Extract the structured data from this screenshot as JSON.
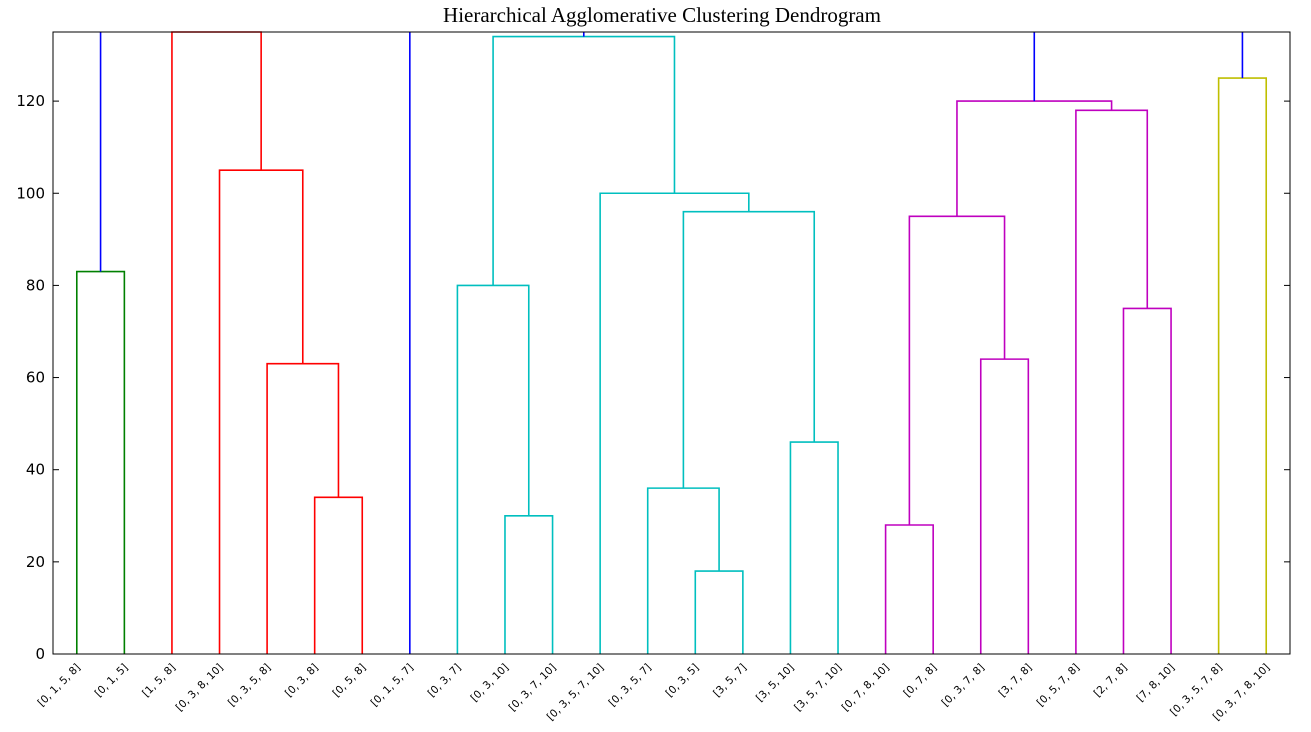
{
  "chart_data": {
    "type": "dendrogram",
    "title": "Hierarchical Agglomerative Clustering Dendrogram",
    "xlabel": "",
    "ylabel": "",
    "ylim": [
      0,
      135
    ],
    "yticks": [
      0,
      20,
      40,
      60,
      80,
      100,
      120
    ],
    "grid": false,
    "leaves": [
      "[0, 1, 5, 8]",
      "[0, 1, 5]",
      "[1, 5, 8]",
      "[0, 3, 8, 10]",
      "[0, 3, 5, 8]",
      "[0, 3, 8]",
      "[0, 5, 8]",
      "[0, 1, 5, 7]",
      "[0, 3, 7]",
      "[0, 3, 10]",
      "[0, 3, 7, 10]",
      "[0, 3, 5, 7, 10]",
      "[0, 3, 5, 7]",
      "[0, 3, 5]",
      "[3, 5, 7]",
      "[3, 5, 10]",
      "[3, 5, 7, 10]",
      "[0, 7, 8, 10]",
      "[0, 7, 8]",
      "[0, 3, 7, 8]",
      "[3, 7, 8]",
      "[0, 5, 7, 8]",
      "[2, 7, 8]",
      "[7, 8, 10]",
      "[0, 3, 5, 7, 8]",
      "[0, 3, 7, 8, 10]"
    ],
    "merges": [
      {
        "left": 0,
        "right": 1,
        "height": 83,
        "color": "#008000"
      },
      {
        "left": 5,
        "right": 6,
        "height": 34,
        "color": "#ff0000"
      },
      {
        "left": 4,
        "right": "m1",
        "height": 63,
        "color": "#ff0000"
      },
      {
        "left": 3,
        "right": "m2",
        "height": 105,
        "color": "#ff0000"
      },
      {
        "left": 2,
        "right": "m3",
        "height": 135,
        "color": "#ff0000"
      },
      {
        "left": 9,
        "right": 10,
        "height": 30,
        "color": "#00bfbf"
      },
      {
        "left": 8,
        "right": "m5",
        "height": 80,
        "color": "#00bfbf"
      },
      {
        "left": 13,
        "right": 14,
        "height": 18,
        "color": "#00bfbf"
      },
      {
        "left": 12,
        "right": "m7",
        "height": 36,
        "color": "#00bfbf"
      },
      {
        "left": 15,
        "right": 16,
        "height": 46,
        "color": "#00bfbf"
      },
      {
        "left": "m8",
        "right": "m9",
        "height": 96,
        "color": "#00bfbf"
      },
      {
        "left": 11,
        "right": "m10",
        "height": 100,
        "color": "#00bfbf"
      },
      {
        "left": "m6",
        "right": "m11",
        "height": 134,
        "color": "#00bfbf"
      },
      {
        "left": 17,
        "right": 18,
        "height": 28,
        "color": "#bf00bf"
      },
      {
        "left": 19,
        "right": 20,
        "height": 64,
        "color": "#bf00bf"
      },
      {
        "left": "m13",
        "right": "m14",
        "height": 95,
        "color": "#bf00bf"
      },
      {
        "left": 22,
        "right": 23,
        "height": 75,
        "color": "#bf00bf"
      },
      {
        "left": 21,
        "right": "m16",
        "height": 118,
        "color": "#bf00bf"
      },
      {
        "left": "m15",
        "right": "m17",
        "height": 120,
        "color": "#bf00bf"
      },
      {
        "left": 24,
        "right": 25,
        "height": 125,
        "color": "#bfbf00"
      }
    ],
    "top_links": [
      {
        "node": "m0",
        "color": "#0000ff"
      },
      {
        "node": "m4",
        "color": "#0000ff"
      },
      {
        "leaf": 7,
        "from": 0,
        "color": "#0000ff"
      },
      {
        "node": "m12",
        "color": "#0000ff"
      },
      {
        "node": "m18",
        "color": "#0000ff"
      },
      {
        "node": "m19",
        "color": "#0000ff"
      }
    ]
  }
}
